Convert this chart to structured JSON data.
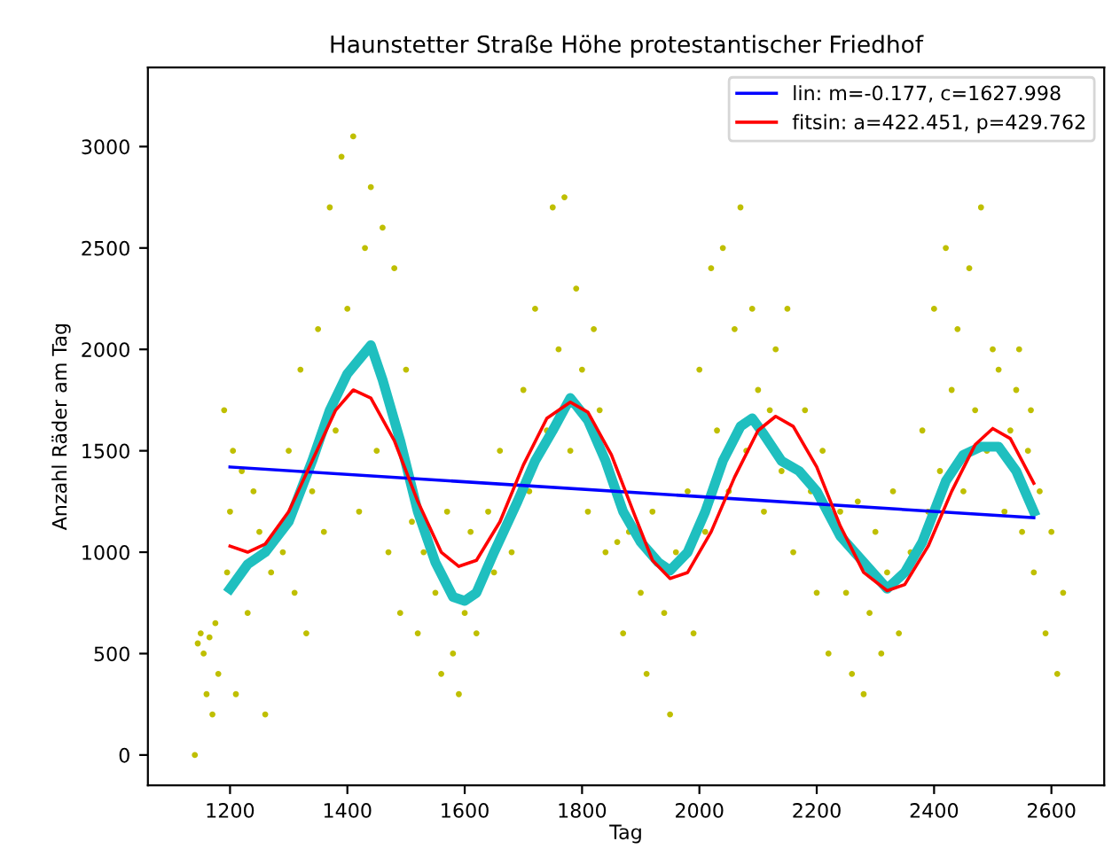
{
  "chart_data": {
    "type": "scatter",
    "title": "Haunstetter Straße Höhe protestantischer Friedhof",
    "xlabel": "Tag",
    "ylabel": "Anzahl Räder am Tag",
    "xlim": [
      1060,
      2690
    ],
    "ylim": [
      -150,
      3390
    ],
    "xticks": [
      1200,
      1400,
      1600,
      1800,
      2000,
      2200,
      2400,
      2600
    ],
    "yticks": [
      0,
      500,
      1000,
      1500,
      2000,
      2500,
      3000
    ],
    "grid": false,
    "legend": "top right",
    "series": [
      {
        "color": "#bfbf00",
        "marker": "circle",
        "x": [
          1140,
          1145,
          1150,
          1155,
          1160,
          1165,
          1170,
          1175,
          1180,
          1190,
          1195,
          1200,
          1205,
          1210,
          1220,
          1230,
          1240,
          1250,
          1260,
          1270,
          1290,
          1300,
          1310,
          1320,
          1330,
          1340,
          1350,
          1360,
          1370,
          1380,
          1390,
          1400,
          1410,
          1420,
          1430,
          1440,
          1450,
          1460,
          1470,
          1480,
          1490,
          1500,
          1510,
          1520,
          1530,
          1550,
          1560,
          1570,
          1580,
          1590,
          1600,
          1610,
          1620,
          1640,
          1650,
          1660,
          1680,
          1700,
          1710,
          1720,
          1740,
          1750,
          1760,
          1770,
          1780,
          1790,
          1800,
          1810,
          1820,
          1830,
          1840,
          1860,
          1870,
          1880,
          1900,
          1910,
          1920,
          1940,
          1950,
          1960,
          1980,
          1990,
          2000,
          2010,
          2020,
          2030,
          2040,
          2050,
          2060,
          2070,
          2080,
          2090,
          2100,
          2110,
          2120,
          2130,
          2140,
          2150,
          2160,
          2180,
          2190,
          2200,
          2210,
          2220,
          2240,
          2250,
          2260,
          2270,
          2280,
          2290,
          2300,
          2310,
          2320,
          2330,
          2340,
          2360,
          2380,
          2390,
          2400,
          2410,
          2420,
          2430,
          2440,
          2450,
          2460,
          2470,
          2480,
          2490,
          2500,
          2510,
          2520,
          2530,
          2540,
          2550,
          2560,
          2570,
          2580,
          2590,
          2600,
          2610,
          2620,
          2565,
          2545
        ],
        "values": [
          0,
          550,
          600,
          500,
          300,
          580,
          200,
          650,
          400,
          1700,
          900,
          1200,
          1500,
          300,
          1400,
          700,
          1300,
          1100,
          200,
          900,
          1000,
          1500,
          800,
          1900,
          600,
          1300,
          2100,
          1100,
          2700,
          1600,
          2950,
          2200,
          3050,
          1200,
          2500,
          2800,
          1500,
          2600,
          1000,
          2400,
          700,
          1900,
          1150,
          600,
          1000,
          800,
          400,
          1200,
          500,
          300,
          700,
          1100,
          600,
          1200,
          900,
          1500,
          1000,
          1800,
          1300,
          2200,
          1600,
          2700,
          2000,
          2750,
          1500,
          2300,
          1900,
          1200,
          2100,
          1700,
          1000,
          1050,
          600,
          1100,
          800,
          400,
          1200,
          700,
          200,
          1000,
          1300,
          600,
          1900,
          1100,
          2400,
          1600,
          2500,
          1300,
          2100,
          2700,
          1500,
          2200,
          1800,
          1200,
          1700,
          2000,
          1400,
          2200,
          1000,
          1700,
          1300,
          800,
          1500,
          500,
          1200,
          800,
          400,
          1250,
          300,
          700,
          1100,
          500,
          900,
          1300,
          600,
          1000,
          1600,
          1200,
          2200,
          1400,
          2500,
          1800,
          2100,
          1300,
          2400,
          1700,
          2700,
          1500,
          2000,
          1900,
          1200,
          1600,
          1800,
          1100,
          1500,
          900,
          1300,
          600,
          1100,
          400,
          800,
          1700,
          2000
        ]
      },
      {
        "type": "line",
        "color": "#1fbfbf",
        "x": [
          1200,
          1230,
          1260,
          1300,
          1340,
          1370,
          1400,
          1420,
          1440,
          1460,
          1490,
          1520,
          1550,
          1580,
          1600,
          1620,
          1650,
          1690,
          1720,
          1750,
          1780,
          1810,
          1840,
          1870,
          1900,
          1930,
          1950,
          1980,
          2010,
          2040,
          2070,
          2090,
          2110,
          2140,
          2170,
          2200,
          2240,
          2280,
          2320,
          2350,
          2380,
          2420,
          2450,
          2480,
          2510,
          2540,
          2570
        ],
        "values": [
          820,
          940,
          1000,
          1150,
          1450,
          1700,
          1880,
          1950,
          2020,
          1850,
          1550,
          1200,
          950,
          780,
          760,
          800,
          1000,
          1250,
          1450,
          1600,
          1760,
          1650,
          1450,
          1200,
          1050,
          950,
          910,
          1000,
          1200,
          1450,
          1620,
          1660,
          1580,
          1450,
          1400,
          1300,
          1080,
          950,
          820,
          900,
          1050,
          1350,
          1480,
          1520,
          1520,
          1400,
          1200
        ]
      },
      {
        "type": "line",
        "name": "lin: m=-0.177, c=1627.998",
        "color": "#0000ff",
        "x": [
          1200,
          2570
        ],
        "values": [
          1420,
          1170
        ]
      },
      {
        "type": "line",
        "name": "fitsin: a=422.451, p=429.762",
        "color": "#ff0000",
        "x": [
          1200,
          1230,
          1260,
          1300,
          1340,
          1380,
          1410,
          1440,
          1480,
          1520,
          1560,
          1590,
          1620,
          1660,
          1700,
          1740,
          1780,
          1810,
          1850,
          1890,
          1920,
          1950,
          1980,
          2020,
          2060,
          2100,
          2130,
          2160,
          2200,
          2240,
          2280,
          2320,
          2350,
          2390,
          2430,
          2470,
          2500,
          2530,
          2570
        ],
        "values": [
          1030,
          1000,
          1040,
          1200,
          1450,
          1700,
          1800,
          1760,
          1550,
          1250,
          1000,
          930,
          960,
          1150,
          1430,
          1660,
          1740,
          1690,
          1480,
          1180,
          960,
          870,
          900,
          1100,
          1370,
          1600,
          1670,
          1620,
          1420,
          1130,
          900,
          810,
          840,
          1030,
          1300,
          1530,
          1610,
          1560,
          1340
        ]
      }
    ]
  }
}
